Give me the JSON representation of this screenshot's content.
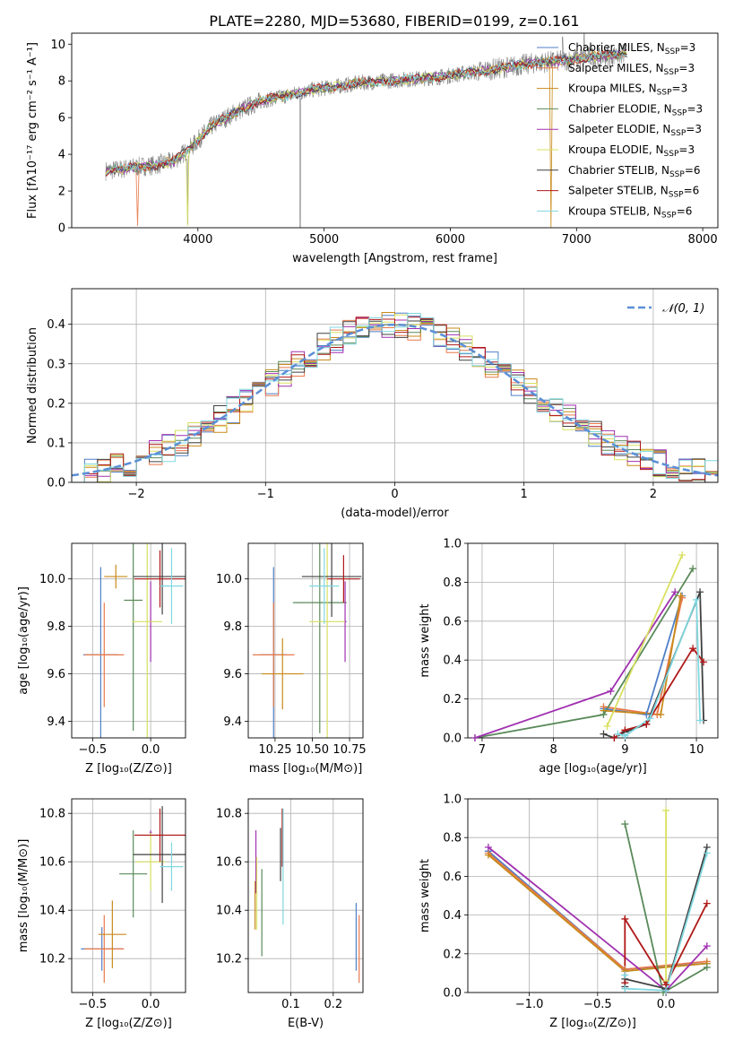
{
  "figure_title": "PLATE=2280, MJD=53680, FIBERID=0199, z=0.161",
  "models": [
    {
      "name": "Chabrier MILES",
      "nssp": "3",
      "color": "#4f7fc7"
    },
    {
      "name": "Salpeter MILES",
      "nssp": "3",
      "color": "#e8794a"
    },
    {
      "name": "Kroupa MILES",
      "nssp": "3",
      "color": "#c88a1a"
    },
    {
      "name": "Chabrier ELODIE",
      "nssp": "3",
      "color": "#5a8a5a"
    },
    {
      "name": "Salpeter ELODIE",
      "nssp": "3",
      "color": "#a030b0"
    },
    {
      "name": "Kroupa ELODIE",
      "nssp": "3",
      "color": "#d8e060"
    },
    {
      "name": "Chabrier STELIB",
      "nssp": "6",
      "color": "#404040"
    },
    {
      "name": "Salpeter STELIB",
      "nssp": "6",
      "color": "#b01818"
    },
    {
      "name": "Kroupa STELIB",
      "nssp": "6",
      "color": "#80d8e0"
    }
  ],
  "chart_data": [
    {
      "id": "spectrum",
      "type": "line",
      "xlabel": "wavelength [Angstrom, rest frame]",
      "ylabel": "Flux [fλ10⁻¹⁷ erg cm⁻² s⁻¹ A⁻¹]",
      "xlim": [
        3000,
        8120
      ],
      "ylim": [
        0,
        10.6
      ],
      "xticks": [
        4000,
        5000,
        6000,
        7000,
        8000
      ],
      "yticks": [
        0,
        2,
        4,
        6,
        8,
        10
      ],
      "grid": false,
      "legend": "upper right",
      "observed_color": "#808080",
      "continuum": {
        "x": [
          3270,
          3400,
          3500,
          3650,
          3800,
          3950,
          4100,
          4300,
          4500,
          4700,
          4900,
          5100,
          5300,
          5500,
          5700,
          5900,
          6100,
          6300,
          6500,
          6700,
          6900,
          7100,
          7300,
          7400
        ],
        "y": [
          3.1,
          3.2,
          3.3,
          3.4,
          3.6,
          4.4,
          5.5,
          6.3,
          6.9,
          7.2,
          7.5,
          7.7,
          7.9,
          8.0,
          8.1,
          8.2,
          8.4,
          8.6,
          8.8,
          9.0,
          9.1,
          9.3,
          9.4,
          9.5
        ]
      },
      "series": [
        {
          "name": "Chabrier MILES, N_SSP=3"
        },
        {
          "name": "Salpeter MILES, N_SSP=3"
        },
        {
          "name": "Kroupa MILES, N_SSP=3"
        },
        {
          "name": "Chabrier ELODIE, N_SSP=3"
        },
        {
          "name": "Salpeter ELODIE, N_SSP=3"
        },
        {
          "name": "Kroupa ELODIE, N_SSP=3"
        },
        {
          "name": "Chabrier STELIB, N_SSP=6"
        },
        {
          "name": "Salpeter STELIB, N_SSP=6"
        },
        {
          "name": "Kroupa STELIB, N_SSP=6"
        }
      ]
    },
    {
      "id": "residuals",
      "type": "line",
      "xlabel": "(data-model)/error",
      "ylabel": "Normed distribution",
      "xlim": [
        -2.5,
        2.5
      ],
      "ylim": [
        0,
        0.49
      ],
      "xticks": [
        -2,
        -1,
        0,
        1,
        2
      ],
      "yticks": [
        0.0,
        0.1,
        0.2,
        0.3,
        0.4
      ],
      "grid": true,
      "legend": "upper right",
      "legend_label": "𝒩(0, 1)",
      "gaussian": {
        "mean": 0,
        "sigma": 1,
        "color": "#5b8fd6"
      },
      "bin_width": 0.1
    },
    {
      "id": "age-vs-Z",
      "type": "scatter",
      "xlabel": "Z [log₁₀(Z/Z⊙)]",
      "ylabel": "age  [log₁₀(age/yr)]",
      "xlim": [
        -0.68,
        0.3
      ],
      "ylim": [
        9.33,
        10.15
      ],
      "xticks": [
        -0.5,
        0.0
      ],
      "yticks": [
        9.4,
        9.6,
        9.8,
        10.0
      ],
      "grid": true,
      "points": [
        {
          "x": -0.43,
          "y": 9.68,
          "xerr": 0.15,
          "yerr": 0.37
        },
        {
          "x": -0.4,
          "y": 9.68,
          "xerr": 0.17,
          "yerr": 0.22
        },
        {
          "x": -0.3,
          "y": 10.01,
          "xerr": 0.1,
          "yerr": 0.05
        },
        {
          "x": -0.15,
          "y": 9.91,
          "xerr": 0.08,
          "yerr": 0.55
        },
        {
          "x": 0.0,
          "y": 9.82,
          "xerr": 0.01,
          "yerr": 0.17
        },
        {
          "x": -0.03,
          "y": 9.82,
          "xerr": 0.13,
          "yerr": 0.51
        },
        {
          "x": 0.1,
          "y": 10.01,
          "xerr": 0.25,
          "yerr": 0.16
        },
        {
          "x": 0.08,
          "y": 10.0,
          "xerr": 0.22,
          "yerr": 0.12
        },
        {
          "x": 0.18,
          "y": 9.97,
          "xerr": 0.1,
          "yerr": 0.16
        }
      ]
    },
    {
      "id": "age-vs-mass",
      "type": "scatter",
      "xlabel": "mass [log₁₀(M/M⊙)]",
      "ylabel": "",
      "xlim": [
        10.07,
        10.84
      ],
      "ylim": [
        9.33,
        10.15
      ],
      "xticks": [
        10.25,
        10.5,
        10.75
      ],
      "yticks": [
        9.4,
        9.6,
        9.8,
        10.0
      ],
      "grid": true,
      "points": [
        {
          "x": 10.24,
          "y": 9.68,
          "xerr": 0.09,
          "yerr": 0.37
        },
        {
          "x": 10.24,
          "y": 9.68,
          "xerr": 0.14,
          "yerr": 0.22
        },
        {
          "x": 10.3,
          "y": 9.6,
          "xerr": 0.14,
          "yerr": 0.15
        },
        {
          "x": 10.55,
          "y": 9.9,
          "xerr": 0.18,
          "yerr": 0.55
        },
        {
          "x": 10.72,
          "y": 9.82,
          "xerr": 0.01,
          "yerr": 0.17
        },
        {
          "x": 10.6,
          "y": 9.82,
          "xerr": 0.12,
          "yerr": 0.5
        },
        {
          "x": 10.63,
          "y": 10.01,
          "xerr": 0.2,
          "yerr": 0.17
        },
        {
          "x": 10.71,
          "y": 10.0,
          "xerr": 0.11,
          "yerr": 0.1
        },
        {
          "x": 10.58,
          "y": 9.97,
          "xerr": 0.1,
          "yerr": 0.16
        }
      ]
    },
    {
      "id": "weight-vs-age",
      "type": "line",
      "xlabel": "age  [log₁₀(age/yr)]",
      "ylabel": "mass weight",
      "xlim": [
        6.8,
        10.3
      ],
      "ylim": [
        0.0,
        1.0
      ],
      "xticks": [
        7,
        8,
        9,
        10
      ],
      "yticks": [
        0.0,
        0.2,
        0.4,
        0.6,
        0.8,
        1.0
      ],
      "grid": true,
      "series": [
        {
          "x": [
            8.7,
            9.3,
            9.8
          ],
          "y": [
            0.15,
            0.12,
            0.73
          ]
        },
        {
          "x": [
            8.7,
            9.45,
            9.8
          ],
          "y": [
            0.16,
            0.12,
            0.72
          ]
        },
        {
          "x": [
            8.7,
            9.5,
            9.78
          ],
          "y": [
            0.14,
            0.12,
            0.73
          ]
        },
        {
          "x": [
            6.9,
            8.7,
            9.95
          ],
          "y": [
            0.0,
            0.12,
            0.87
          ]
        },
        {
          "x": [
            6.9,
            8.8,
            9.7
          ],
          "y": [
            0.0,
            0.24,
            0.75
          ]
        },
        {
          "x": [
            8.75,
            9.8
          ],
          "y": [
            0.06,
            0.94
          ]
        },
        {
          "x": [
            8.7,
            8.85,
            9.0,
            9.3,
            10.05,
            10.1
          ],
          "y": [
            0.02,
            0.0,
            0.03,
            0.07,
            0.75,
            0.09
          ]
        },
        {
          "x": [
            8.85,
            9.0,
            9.3,
            9.95,
            10.1
          ],
          "y": [
            0.0,
            0.04,
            0.07,
            0.46,
            0.39
          ]
        },
        {
          "x": [
            8.9,
            9.0,
            9.35,
            10.0,
            10.05
          ],
          "y": [
            0.02,
            0.01,
            0.1,
            0.71,
            0.09
          ]
        }
      ]
    },
    {
      "id": "mass-vs-Z",
      "type": "scatter",
      "xlabel": "Z [log₁₀(Z/Z⊙)]",
      "ylabel": "mass [log₁₀(M/M⊙)]",
      "xlim": [
        -0.68,
        0.3
      ],
      "ylim": [
        10.06,
        10.86
      ],
      "xticks": [
        -0.5,
        0.0
      ],
      "yticks": [
        10.2,
        10.4,
        10.6,
        10.8
      ],
      "grid": true,
      "points": [
        {
          "x": -0.42,
          "y": 10.24,
          "xerr": 0.18,
          "yerr": 0.09
        },
        {
          "x": -0.4,
          "y": 10.24,
          "xerr": 0.17,
          "yerr": 0.14
        },
        {
          "x": -0.33,
          "y": 10.3,
          "xerr": 0.12,
          "yerr": 0.14
        },
        {
          "x": -0.15,
          "y": 10.55,
          "xerr": 0.12,
          "yerr": 0.18
        },
        {
          "x": 0.0,
          "y": 10.72,
          "xerr": 0.01,
          "yerr": 0.01
        },
        {
          "x": 0.0,
          "y": 10.6,
          "xerr": 0.13,
          "yerr": 0.12
        },
        {
          "x": 0.1,
          "y": 10.63,
          "xerr": 0.25,
          "yerr": 0.2
        },
        {
          "x": 0.08,
          "y": 10.71,
          "xerr": 0.22,
          "yerr": 0.11
        },
        {
          "x": 0.18,
          "y": 10.58,
          "xerr": 0.1,
          "yerr": 0.1
        }
      ]
    },
    {
      "id": "mass-vs-ebv",
      "type": "scatter",
      "xlabel": "E(B-V)",
      "ylabel": "",
      "xlim": [
        0.0,
        0.27
      ],
      "ylim": [
        10.06,
        10.86
      ],
      "xticks": [
        0.1,
        0.2
      ],
      "yticks": [
        10.2,
        10.4,
        10.6,
        10.8
      ],
      "grid": true,
      "points": [
        {
          "x": 0.254,
          "y": 10.29,
          "yerr": 0.14
        },
        {
          "x": 0.261,
          "y": 10.24,
          "yerr": 0.14
        },
        {
          "x": 0.016,
          "y": 10.42,
          "yerr": 0.1
        },
        {
          "x": 0.032,
          "y": 10.39,
          "yerr": 0.18
        },
        {
          "x": 0.018,
          "y": 10.6,
          "yerr": 0.13
        },
        {
          "x": 0.02,
          "y": 10.47,
          "yerr": 0.15
        },
        {
          "x": 0.076,
          "y": 10.63,
          "yerr": 0.11
        },
        {
          "x": 0.08,
          "y": 10.7,
          "yerr": 0.12
        },
        {
          "x": 0.082,
          "y": 10.58,
          "yerr": 0.24
        }
      ]
    },
    {
      "id": "weight-vs-Z",
      "type": "line",
      "xlabel": "Z [log₁₀(Z/Z⊙)]",
      "ylabel": "mass weight",
      "xlim": [
        -1.45,
        0.38
      ],
      "ylim": [
        0.0,
        1.0
      ],
      "xticks": [
        -1.0,
        -0.5,
        0.0
      ],
      "yticks": [
        0.0,
        0.2,
        0.4,
        0.6,
        0.8,
        1.0
      ],
      "grid": true,
      "series": [
        {
          "x": [
            -1.3,
            -0.3,
            0.3
          ],
          "y": [
            0.73,
            0.12,
            0.15
          ]
        },
        {
          "x": [
            -1.3,
            -0.3,
            0.3
          ],
          "y": [
            0.72,
            0.12,
            0.16
          ]
        },
        {
          "x": [
            -1.3,
            -0.3,
            0.3
          ],
          "y": [
            0.71,
            0.11,
            0.15
          ]
        },
        {
          "x": [
            -0.3,
            -0.02,
            0.3
          ],
          "y": [
            0.87,
            0.0,
            0.13
          ]
        },
        {
          "x": [
            -1.3,
            0.0,
            0.3
          ],
          "y": [
            0.75,
            0.01,
            0.24
          ]
        },
        {
          "x": [
            0.0,
            0.0
          ],
          "y": [
            0.94,
            0.06
          ]
        },
        {
          "x": [
            -0.3,
            -0.3,
            0.0,
            0.3
          ],
          "y": [
            0.03,
            0.07,
            0.02,
            0.75
          ]
        },
        {
          "x": [
            -0.3,
            -0.3,
            0.0,
            0.3
          ],
          "y": [
            0.05,
            0.38,
            0.04,
            0.46
          ]
        },
        {
          "x": [
            -0.3,
            -0.3,
            0.0,
            0.3
          ],
          "y": [
            0.09,
            0.02,
            0.01,
            0.72
          ]
        }
      ]
    }
  ]
}
